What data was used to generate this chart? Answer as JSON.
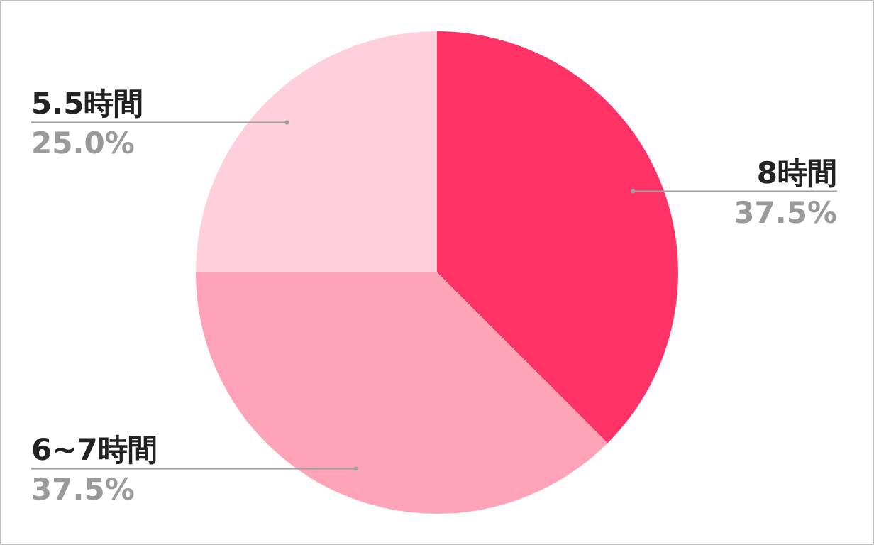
{
  "chart_data": {
    "type": "pie",
    "categories": [
      "8時間",
      "6~7時間",
      "5.5時間"
    ],
    "values": [
      37.5,
      37.5,
      25.0
    ],
    "value_labels": [
      "37.5%",
      "37.5%",
      "25.0%"
    ],
    "colors": [
      "#ff3366",
      "#ffa3b8",
      "#ffd0dc"
    ],
    "data_labels": true
  }
}
